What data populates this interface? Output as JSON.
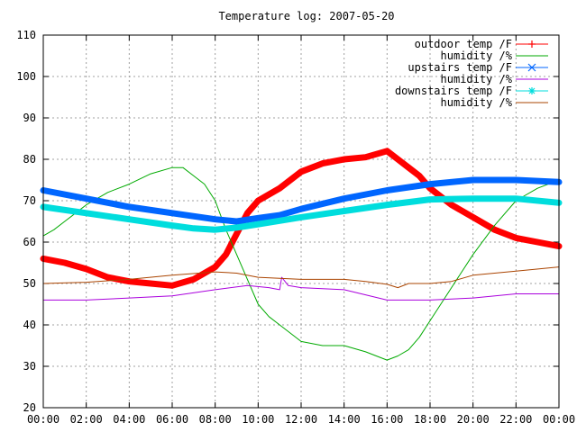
{
  "chart_data": {
    "type": "line",
    "title": "Temperature log: 2007-05-20",
    "xlabel": "",
    "ylabel": "",
    "xlim": [
      0,
      24
    ],
    "ylim": [
      20,
      110
    ],
    "x_ticks": [
      "00:00",
      "02:00",
      "04:00",
      "06:00",
      "08:00",
      "10:00",
      "12:00",
      "14:00",
      "16:00",
      "18:00",
      "20:00",
      "22:00",
      "00:00"
    ],
    "y_ticks": [
      20,
      30,
      40,
      50,
      60,
      70,
      80,
      90,
      100,
      110
    ],
    "grid": true,
    "legend_position": "top-right",
    "series": [
      {
        "name": "outdoor temp /F",
        "color": "#ff0000",
        "marker": "plus",
        "style": "thick",
        "points": [
          [
            0,
            56
          ],
          [
            1,
            55
          ],
          [
            2,
            53.5
          ],
          [
            3,
            51.5
          ],
          [
            4,
            50.5
          ],
          [
            5,
            50
          ],
          [
            6,
            49.5
          ],
          [
            7,
            51
          ],
          [
            7.5,
            52.5
          ],
          [
            8,
            54
          ],
          [
            8.5,
            57
          ],
          [
            9,
            62
          ],
          [
            9.5,
            67
          ],
          [
            10,
            70
          ],
          [
            11,
            73
          ],
          [
            12,
            77
          ],
          [
            13,
            79
          ],
          [
            14,
            80
          ],
          [
            15,
            80.5
          ],
          [
            16,
            82
          ],
          [
            16.5,
            80
          ],
          [
            17,
            78
          ],
          [
            17.5,
            76
          ],
          [
            18,
            73
          ],
          [
            19,
            69
          ],
          [
            20,
            66
          ],
          [
            21,
            63
          ],
          [
            22,
            61
          ],
          [
            23,
            60
          ],
          [
            24,
            59
          ]
        ]
      },
      {
        "name": "humidity /%",
        "color": "#00aa00",
        "marker": "none",
        "style": "thin",
        "points": [
          [
            0,
            61.5
          ],
          [
            0.5,
            63
          ],
          [
            1,
            65
          ],
          [
            1.5,
            67
          ],
          [
            2,
            69
          ],
          [
            3,
            72
          ],
          [
            4,
            74
          ],
          [
            5,
            76.5
          ],
          [
            6,
            78
          ],
          [
            6.5,
            78
          ],
          [
            7,
            76
          ],
          [
            7.5,
            74
          ],
          [
            8,
            70
          ],
          [
            8.5,
            63
          ],
          [
            9,
            57
          ],
          [
            9.5,
            51
          ],
          [
            10,
            45
          ],
          [
            10.5,
            42
          ],
          [
            11,
            40
          ],
          [
            12,
            36
          ],
          [
            13,
            35
          ],
          [
            14,
            35
          ],
          [
            15,
            33.5
          ],
          [
            15.5,
            32.5
          ],
          [
            16,
            31.5
          ],
          [
            16.5,
            32.5
          ],
          [
            17,
            34
          ],
          [
            17.5,
            37
          ],
          [
            18,
            41
          ],
          [
            19,
            49
          ],
          [
            20,
            57
          ],
          [
            21,
            64
          ],
          [
            22,
            70
          ],
          [
            23,
            73
          ],
          [
            24,
            75
          ]
        ]
      },
      {
        "name": "upstairs temp /F",
        "color": "#0066ff",
        "marker": "x",
        "style": "thick",
        "points": [
          [
            0,
            72.5
          ],
          [
            2,
            70.5
          ],
          [
            4,
            68.5
          ],
          [
            6,
            67
          ],
          [
            8,
            65.5
          ],
          [
            9,
            65
          ],
          [
            10,
            65.8
          ],
          [
            11,
            66.5
          ],
          [
            12,
            68
          ],
          [
            14,
            70.5
          ],
          [
            16,
            72.5
          ],
          [
            18,
            74
          ],
          [
            20,
            75
          ],
          [
            22,
            75
          ],
          [
            24,
            74.5
          ]
        ]
      },
      {
        "name": "humidity /%",
        "color": "#aa00dd",
        "marker": "none",
        "style": "thin",
        "points": [
          [
            0,
            46
          ],
          [
            2,
            46
          ],
          [
            4,
            46.5
          ],
          [
            6,
            47
          ],
          [
            8,
            48.5
          ],
          [
            9.5,
            49.5
          ],
          [
            10.5,
            49
          ],
          [
            11,
            48.5
          ],
          [
            11.1,
            51.5
          ],
          [
            11.4,
            49.5
          ],
          [
            12,
            49
          ],
          [
            14,
            48.5
          ],
          [
            16,
            46
          ],
          [
            18,
            46
          ],
          [
            20,
            46.5
          ],
          [
            22,
            47.5
          ],
          [
            24,
            47.5
          ]
        ]
      },
      {
        "name": "downstairs temp /F",
        "color": "#00dddd",
        "marker": "star",
        "style": "thick",
        "points": [
          [
            0,
            68.5
          ],
          [
            2,
            67
          ],
          [
            4,
            65.5
          ],
          [
            6,
            64
          ],
          [
            7,
            63.3
          ],
          [
            8,
            63
          ],
          [
            9,
            63.5
          ],
          [
            10,
            64.3
          ],
          [
            12,
            66
          ],
          [
            14,
            67.5
          ],
          [
            16,
            69
          ],
          [
            18,
            70.3
          ],
          [
            20,
            70.5
          ],
          [
            22,
            70.5
          ],
          [
            24,
            69.5
          ]
        ]
      },
      {
        "name": "humidity /%",
        "color": "#aa4400",
        "marker": "none",
        "style": "thin",
        "points": [
          [
            0,
            50
          ],
          [
            2,
            50.3
          ],
          [
            4,
            51
          ],
          [
            6,
            52
          ],
          [
            8,
            52.8
          ],
          [
            9,
            52.5
          ],
          [
            10,
            51.5
          ],
          [
            12,
            51
          ],
          [
            14,
            51
          ],
          [
            15,
            50.5
          ],
          [
            16,
            49.8
          ],
          [
            16.5,
            49
          ],
          [
            17,
            50
          ],
          [
            18,
            50
          ],
          [
            19,
            50.5
          ],
          [
            20,
            52
          ],
          [
            22,
            53
          ],
          [
            24,
            54
          ]
        ]
      }
    ]
  }
}
